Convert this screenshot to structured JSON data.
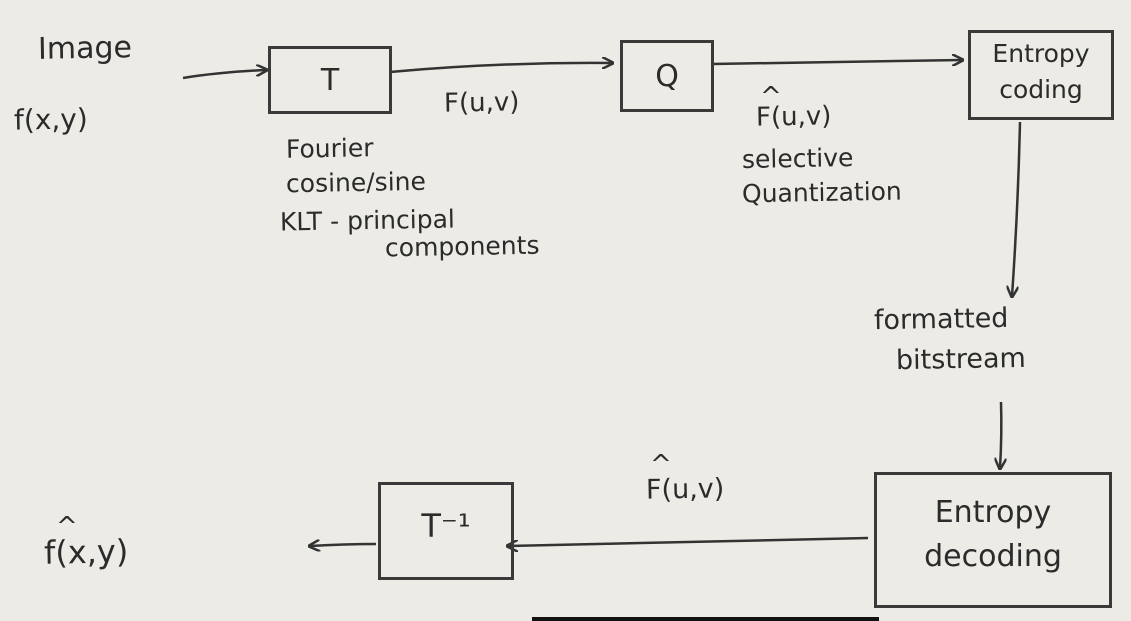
{
  "diagram": {
    "input": {
      "label": "Image",
      "signal": "f(x,y)"
    },
    "transform_box": {
      "label": "T"
    },
    "transform_output": "F(u,v)",
    "transform_notes": [
      "Fourier",
      "cosine/sine",
      "KLT - principal",
      "components"
    ],
    "quantizer_box": {
      "label": "Q"
    },
    "quantizer_output": "F(u,v)",
    "quantizer_notes": [
      "selective",
      "Quantization"
    ],
    "entropy_coding_box": {
      "line1": "Entropy",
      "line2": "coding"
    },
    "channel_label": {
      "line1": "formatted",
      "line2": "bitstream"
    },
    "entropy_decoding_box": {
      "line1": "Entropy",
      "line2": "decoding"
    },
    "decoder_input": "F(u,v)",
    "inverse_transform_box": {
      "label": "T⁻¹"
    },
    "output_signal": "f(x,y)"
  }
}
